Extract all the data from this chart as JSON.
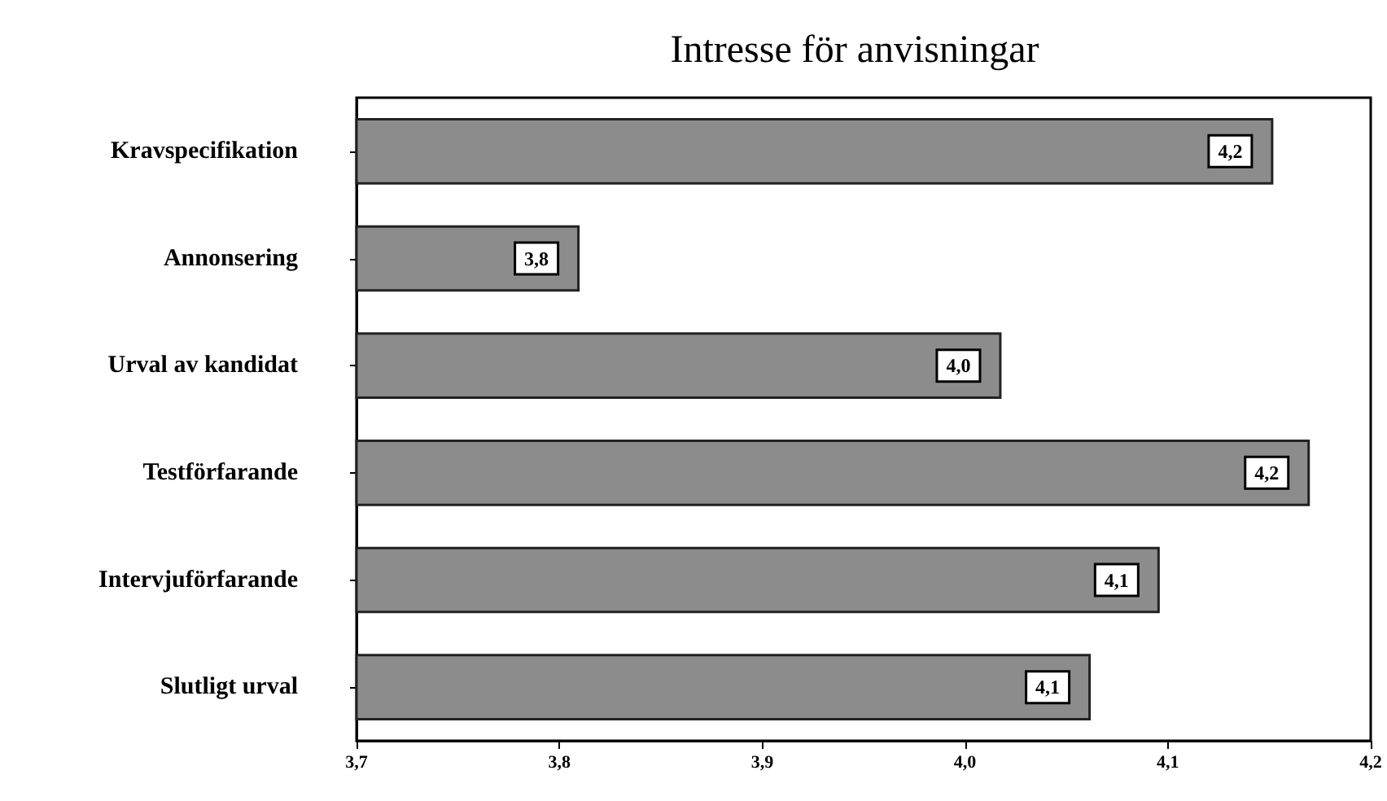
{
  "chart_data": {
    "type": "bar",
    "orientation": "horizontal",
    "title": "Intresse för anvisningar",
    "categories": [
      "Kravspecifikation",
      "Annonsering",
      "Urval av kandidat",
      "Testförfarande",
      "Intervjuförfarande",
      "Slutligt urval"
    ],
    "values": [
      4.152,
      3.81,
      4.018,
      4.17,
      4.096,
      4.062
    ],
    "value_labels": [
      "4,2",
      "3,8",
      "4,0",
      "4,2",
      "4,1",
      "4,1"
    ],
    "color": "#8c8c8c",
    "xlim": [
      3.7,
      4.2
    ],
    "xticks": [
      {
        "value": 3.7,
        "label": "3,7"
      },
      {
        "value": 3.8,
        "label": "3,8"
      },
      {
        "value": 3.9,
        "label": "3,9"
      },
      {
        "value": 4.0,
        "label": "4,0"
      },
      {
        "value": 4.1,
        "label": "4,1"
      },
      {
        "value": 4.2,
        "label": "4,2"
      }
    ],
    "grid": false
  }
}
